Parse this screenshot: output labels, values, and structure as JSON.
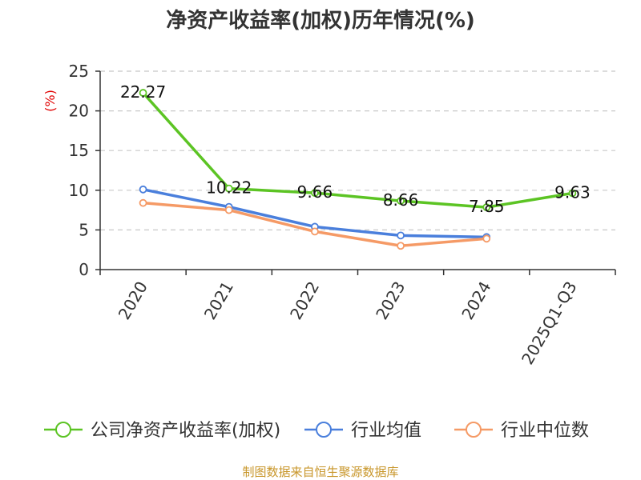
{
  "chart_data": {
    "type": "line",
    "title": "净资产收益率(加权)历年情况(%)",
    "ylabel": "(%)",
    "xlabel": "",
    "categories": [
      "2020",
      "2021",
      "2022",
      "2023",
      "2024",
      "2025Q1-Q3"
    ],
    "ylim": [
      0,
      25
    ],
    "yticks": [
      0,
      5,
      10,
      15,
      20,
      25
    ],
    "grid": true,
    "legend_position": "bottom",
    "series": [
      {
        "name": "公司净资产收益率(加权)",
        "color": "#5cc424",
        "values": [
          22.27,
          10.22,
          9.66,
          8.66,
          7.85,
          9.63
        ],
        "labels": [
          "22.27",
          "10.22",
          "9.66",
          "8.66",
          "7.85",
          "9.63"
        ]
      },
      {
        "name": "行业均值",
        "color": "#4a7fdc",
        "values": [
          10.1,
          7.9,
          5.4,
          4.3,
          4.1,
          null
        ]
      },
      {
        "name": "行业中位数",
        "color": "#f59a66",
        "values": [
          8.4,
          7.5,
          4.8,
          3.0,
          3.9,
          null
        ]
      }
    ]
  },
  "source": "制图数据来自恒生聚源数据库"
}
